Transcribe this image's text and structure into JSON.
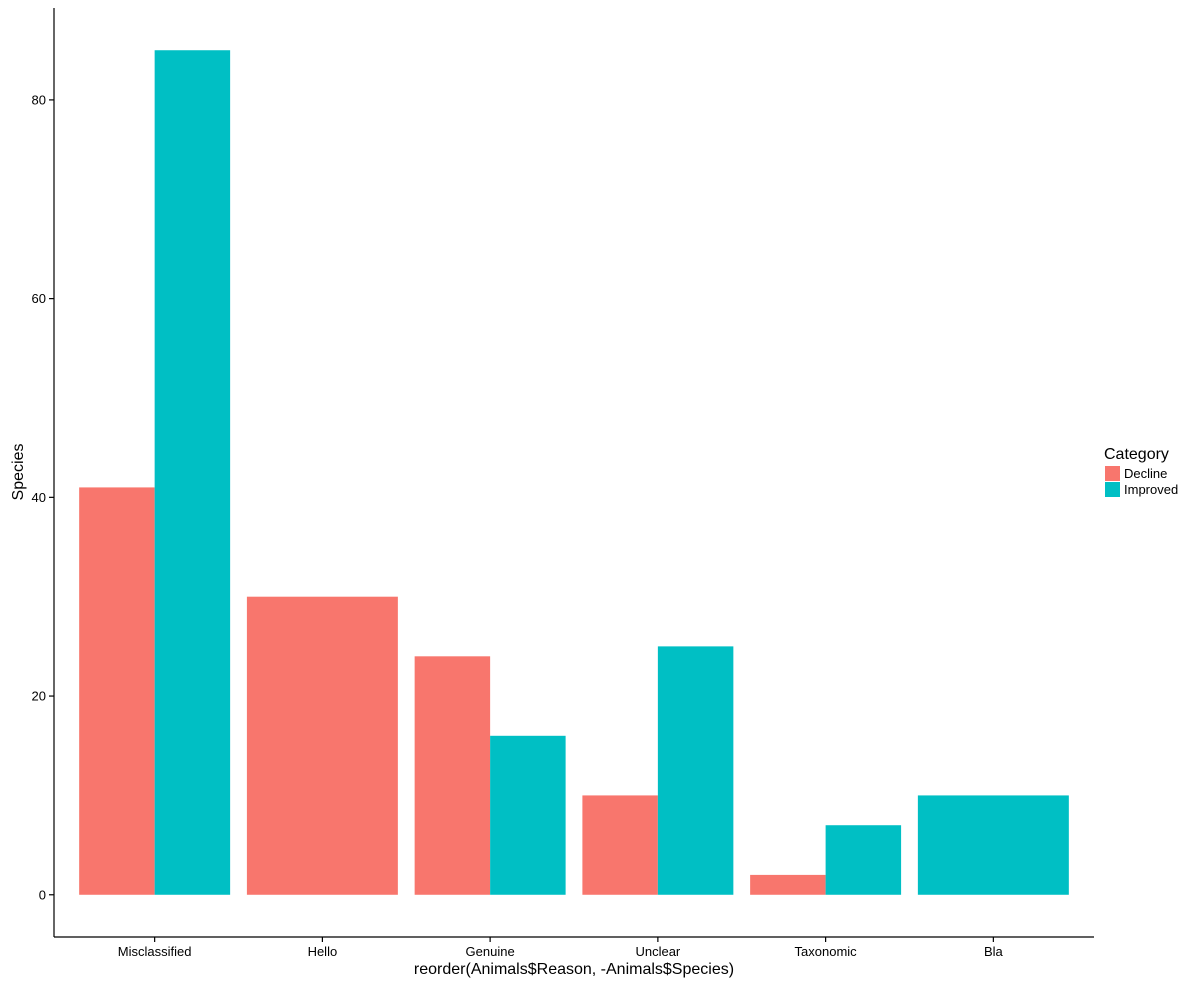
{
  "chart_data": {
    "type": "bar",
    "categories": [
      "Misclassified",
      "Hello",
      "Genuine",
      "Unclear",
      "Taxonomic",
      "Bla"
    ],
    "series": [
      {
        "name": "Decline",
        "color": "#F8766D",
        "values": [
          41,
          30,
          24,
          10,
          2,
          null
        ]
      },
      {
        "name": "Improved",
        "color": "#00BFC4",
        "values": [
          85,
          null,
          16,
          25,
          7,
          10
        ]
      }
    ],
    "title": "",
    "xlabel": "reorder(Animals$Reason, -Animals$Species)",
    "ylabel": "Species",
    "ylim": [
      -4.25,
      89.25
    ],
    "yticks": [
      0,
      20,
      40,
      60,
      80
    ],
    "grid": false,
    "legend": {
      "title": "Category",
      "position": "right"
    }
  }
}
